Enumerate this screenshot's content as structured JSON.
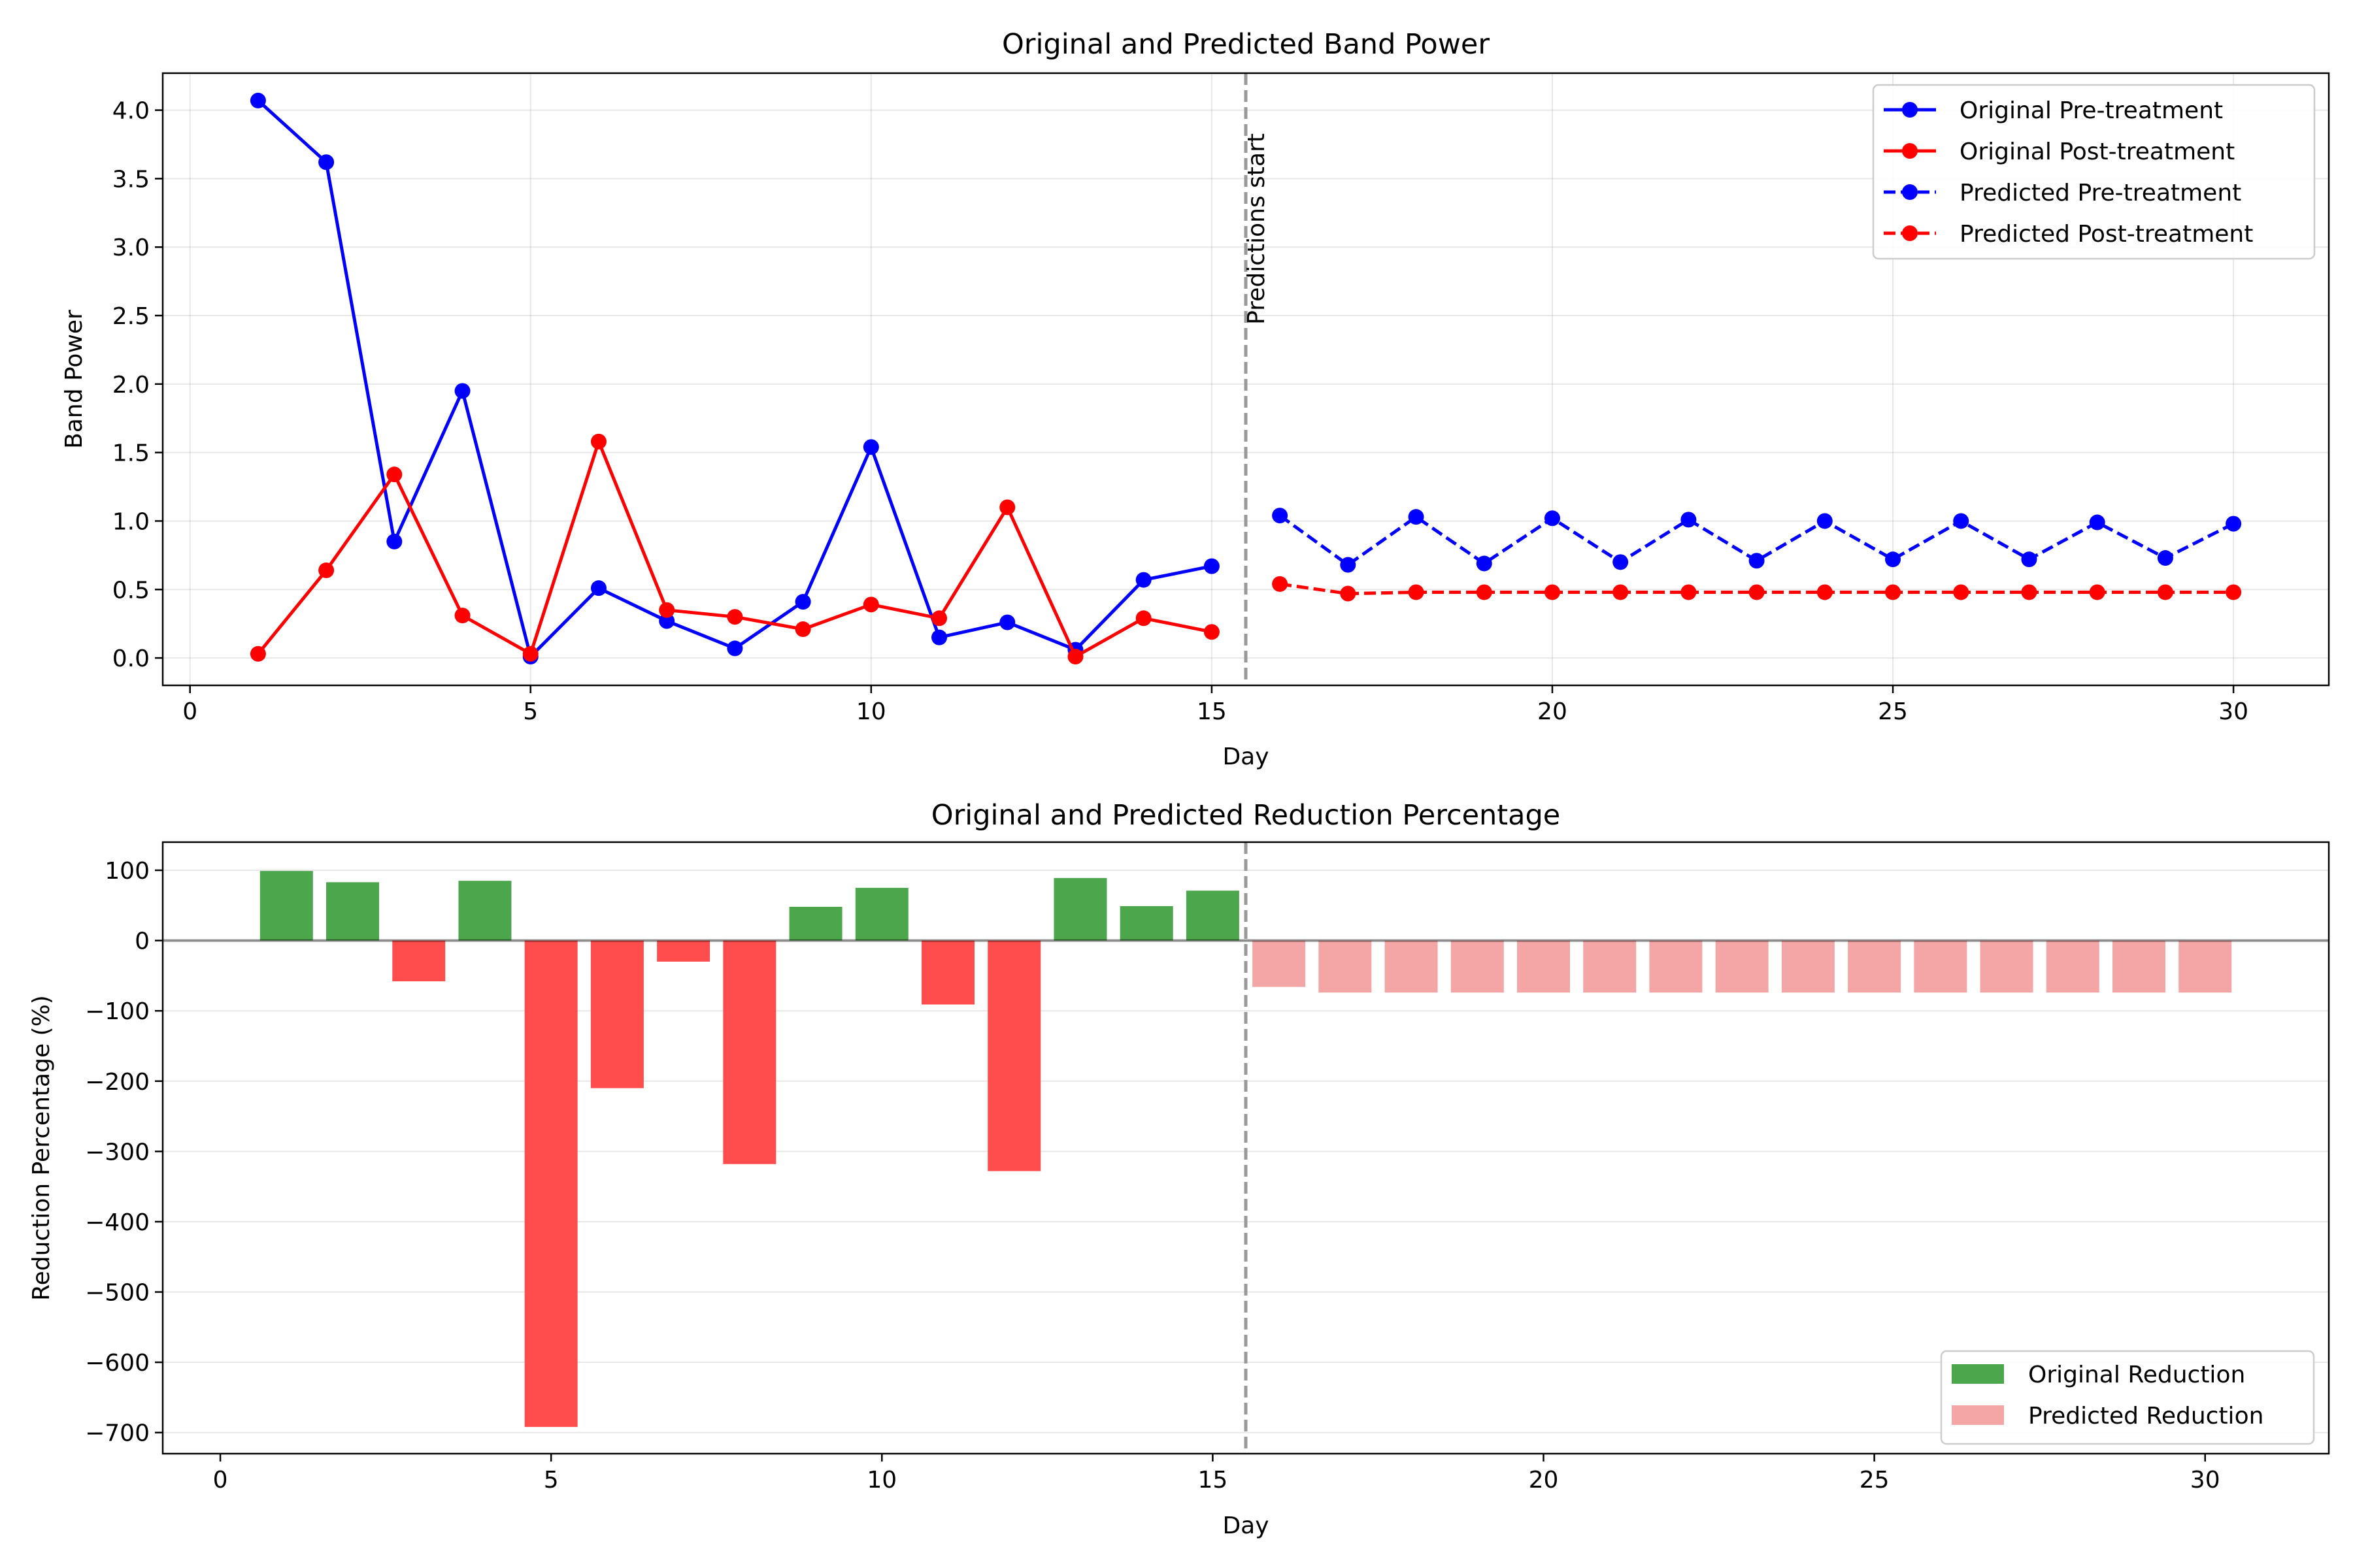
{
  "chart_data": [
    {
      "type": "line",
      "title": "Original and Predicted Band Power",
      "xlabel": "Day",
      "ylabel": "Band Power",
      "xlim": [
        -0.4,
        31.4
      ],
      "ylim": [
        -0.2,
        4.27
      ],
      "xticks": [
        0,
        5,
        10,
        15,
        20,
        25,
        30
      ],
      "yticks": [
        0.0,
        0.5,
        1.0,
        1.5,
        2.0,
        2.5,
        3.0,
        3.5,
        4.0
      ],
      "ytick_format": "0.0",
      "grid": true,
      "legend": "top-right",
      "annotation": {
        "x": 15.5,
        "label": "Predictions start",
        "line_style": "dashed",
        "color": "#999999"
      },
      "series": [
        {
          "name": "Original Pre-treatment",
          "color": "#0000ff",
          "line_style": "solid",
          "marker": "circle",
          "x": [
            1,
            2,
            3,
            4,
            5,
            6,
            7,
            8,
            9,
            10,
            11,
            12,
            13,
            14,
            15
          ],
          "y": [
            4.07,
            3.62,
            0.85,
            1.95,
            0.01,
            0.51,
            0.27,
            0.07,
            0.41,
            1.54,
            0.15,
            0.26,
            0.06,
            0.57,
            0.67
          ]
        },
        {
          "name": "Original Post-treatment",
          "color": "#ff0000",
          "line_style": "solid",
          "marker": "circle",
          "x": [
            1,
            2,
            3,
            4,
            5,
            6,
            7,
            8,
            9,
            10,
            11,
            12,
            13,
            14,
            15
          ],
          "y": [
            0.03,
            0.64,
            1.34,
            0.31,
            0.03,
            1.58,
            0.35,
            0.3,
            0.21,
            0.39,
            0.29,
            1.1,
            0.01,
            0.29,
            0.19
          ]
        },
        {
          "name": "Predicted Pre-treatment",
          "color": "#0000ff",
          "line_style": "dashed",
          "marker": "circle",
          "x": [
            16,
            17,
            18,
            19,
            20,
            21,
            22,
            23,
            24,
            25,
            26,
            27,
            28,
            29,
            30
          ],
          "y": [
            1.04,
            0.68,
            1.03,
            0.69,
            1.02,
            0.7,
            1.01,
            0.71,
            1.0,
            0.72,
            1.0,
            0.72,
            0.99,
            0.73,
            0.98
          ]
        },
        {
          "name": "Predicted Post-treatment",
          "color": "#ff0000",
          "line_style": "dashed",
          "marker": "circle",
          "x": [
            16,
            17,
            18,
            19,
            20,
            21,
            22,
            23,
            24,
            25,
            26,
            27,
            28,
            29,
            30
          ],
          "y": [
            0.54,
            0.47,
            0.48,
            0.48,
            0.48,
            0.48,
            0.48,
            0.48,
            0.48,
            0.48,
            0.48,
            0.48,
            0.48,
            0.48,
            0.48
          ]
        }
      ]
    },
    {
      "type": "bar",
      "title": "Original and Predicted Reduction Percentage",
      "xlabel": "Day",
      "ylabel": "Reduction Percentage (%)",
      "xlim": [
        -0.87,
        31.87
      ],
      "ylim": [
        -730,
        140
      ],
      "xticks": [
        0,
        5,
        10,
        15,
        20,
        25,
        30
      ],
      "yticks": [
        100,
        0,
        -100,
        -200,
        -300,
        -400,
        -500,
        -600,
        -700
      ],
      "grid": true,
      "legend": "bottom-right",
      "zero_line": true,
      "annotation": {
        "x": 15.5,
        "line_style": "dashed",
        "color": "#999999"
      },
      "bar_width": 0.8,
      "series": [
        {
          "name": "Original Reduction",
          "color_positive": "#4ca64c",
          "color_negative": "#ff4d4d",
          "x": [
            1,
            2,
            3,
            4,
            5,
            6,
            7,
            8,
            9,
            10,
            11,
            12,
            13,
            14,
            15
          ],
          "values": [
            99,
            83,
            -58,
            85,
            -692,
            -210,
            -30,
            -318,
            48,
            75,
            -91,
            -328,
            89,
            49,
            71
          ]
        },
        {
          "name": "Predicted Reduction",
          "color": "#f4a6a6",
          "x": [
            16,
            17,
            18,
            19,
            20,
            21,
            22,
            23,
            24,
            25,
            26,
            27,
            28,
            29,
            30
          ],
          "values": [
            -66,
            -74,
            -74,
            -74,
            -74,
            -74,
            -74,
            -74,
            -74,
            -74,
            -74,
            -74,
            -74,
            -74,
            -74
          ]
        }
      ]
    }
  ]
}
